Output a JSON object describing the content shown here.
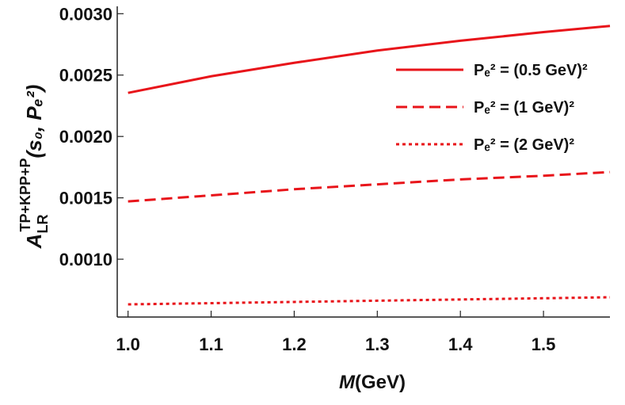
{
  "chart_data": {
    "type": "line",
    "x_label": {
      "var": "M",
      "unit": "(GeV)"
    },
    "y_label": {
      "base": "A",
      "sub": "LR",
      "sup": "TP+KPP+P",
      "args": "(s₀, Pₑ²)"
    },
    "x": [
      1.0,
      1.1,
      1.2,
      1.3,
      1.4,
      1.5,
      1.58
    ],
    "series": [
      {
        "name": "Pₑ² = (0.5 GeV)²",
        "color": "#e8141a",
        "dash": "solid",
        "values": [
          0.002355,
          0.00249,
          0.0026,
          0.0027,
          0.00278,
          0.00285,
          0.0029
        ]
      },
      {
        "name": "Pₑ² = (1 GeV)²",
        "color": "#e8141a",
        "dash": "dashed",
        "values": [
          0.001471,
          0.00152,
          0.00157,
          0.00161,
          0.00165,
          0.00168,
          0.00171
        ]
      },
      {
        "name": "Pₑ² = (2 GeV)²",
        "color": "#e8141a",
        "dash": "dotted",
        "values": [
          0.000632,
          0.000642,
          0.000652,
          0.000662,
          0.000672,
          0.000682,
          0.00069
        ]
      }
    ],
    "xlim": [
      0.987,
      1.58
    ],
    "ylim": [
      0.000529,
      0.00306
    ],
    "xticks": [
      {
        "value": 1.0,
        "label": "1.0"
      },
      1.1,
      1.2,
      1.3,
      1.4,
      1.5
    ],
    "yticks": [
      {
        "value": 0.001,
        "label": "0.0010"
      },
      0.0015,
      {
        "value": 0.002,
        "label": "0.0020"
      },
      0.0025,
      {
        "value": 0.003,
        "label": "0.0030"
      }
    ],
    "legend": "upper-right"
  }
}
